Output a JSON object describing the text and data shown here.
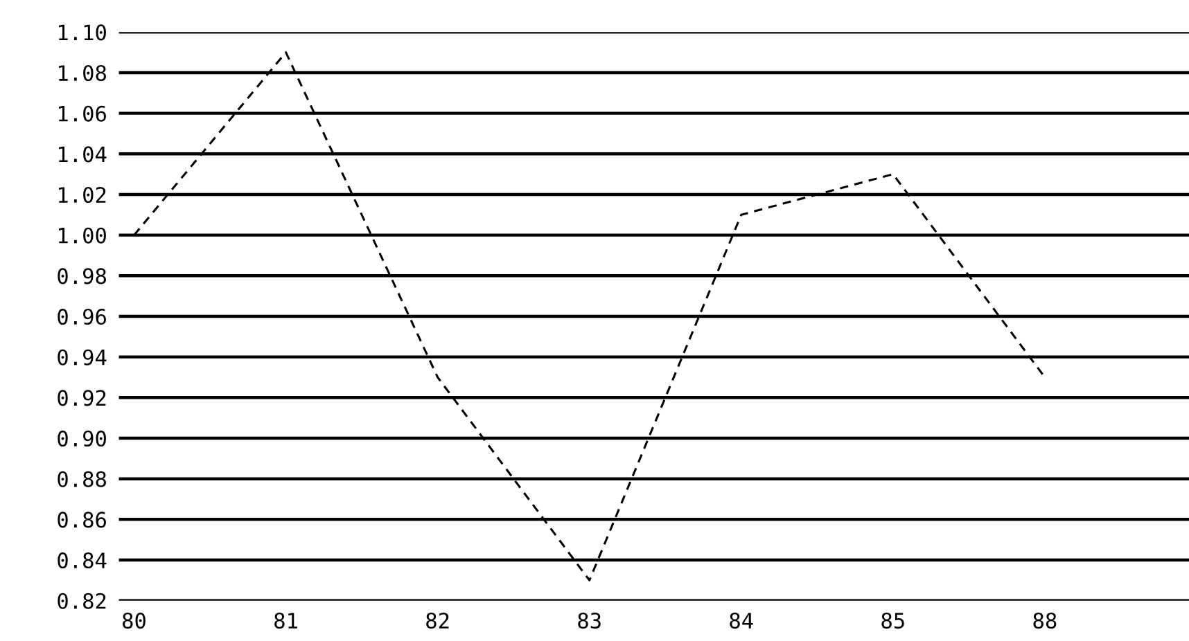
{
  "chart_data": {
    "type": "line",
    "categories": [
      "80",
      "81",
      "82",
      "83",
      "84",
      "85",
      "88"
    ],
    "series": [
      {
        "color": "#000000",
        "values": [
          1.0,
          1.09,
          0.93,
          0.83,
          1.01,
          1.03,
          0.93
        ]
      }
    ],
    "ylim": [
      0.82,
      1.1
    ],
    "yticks": [
      {
        "value": 0.82,
        "label": "0.82"
      },
      {
        "value": 0.84,
        "label": "0.84"
      },
      {
        "value": 0.86,
        "label": "0.86"
      },
      {
        "value": 0.88,
        "label": "0.88"
      },
      {
        "value": 0.9,
        "label": "0.90"
      },
      {
        "value": 0.92,
        "label": "0.92"
      },
      {
        "value": 0.94,
        "label": "0.94"
      },
      {
        "value": 0.96,
        "label": "0.96"
      },
      {
        "value": 0.98,
        "label": "0.98"
      },
      {
        "value": 1.0,
        "label": "1.00"
      },
      {
        "value": 1.02,
        "label": "1.02"
      },
      {
        "value": 1.04,
        "label": "1.04"
      },
      {
        "value": 1.06,
        "label": "1.06"
      },
      {
        "value": 1.08,
        "label": "1.08"
      },
      {
        "value": 1.1,
        "label": "1.10"
      }
    ],
    "grid": "y",
    "line_style": "dashed",
    "marker": "none"
  }
}
